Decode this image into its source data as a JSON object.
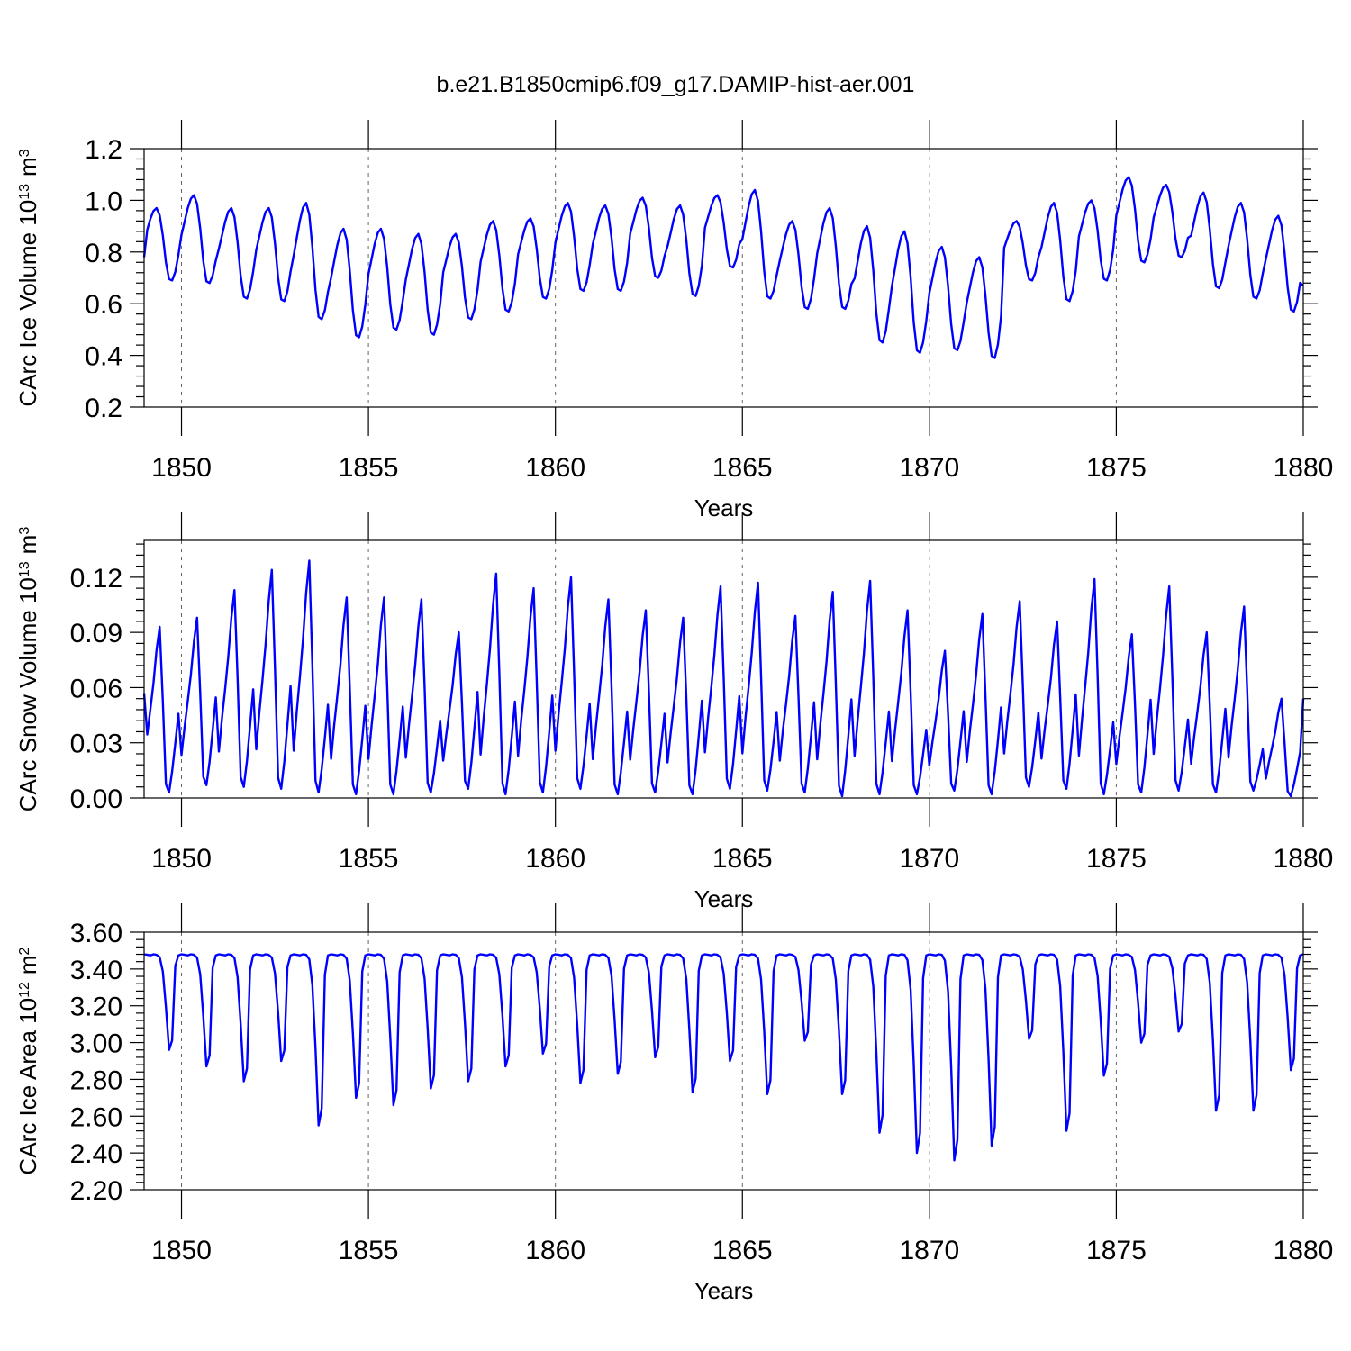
{
  "title": "b.e21.B1850cmip6.f09_g17.DAMIP-hist-aer.001",
  "chart_data": [
    {
      "type": "line",
      "ylabel": "CArc Ice Volume 10",
      "ylabel_exp": "13",
      "ylabel_unit": "m",
      "ylabel_unit_exp": "3",
      "xlabel": "Years",
      "xlim": [
        1849.0,
        1880.0
      ],
      "xticks": [
        1850,
        1855,
        1860,
        1865,
        1870,
        1875,
        1880
      ],
      "xtick_labels": [
        "1850",
        "1855",
        "1860",
        "1865",
        "1870",
        "1875",
        "1880"
      ],
      "ylim": [
        0.2,
        1.2
      ],
      "yticks": [
        0.2,
        0.4,
        0.6,
        0.8,
        1.0,
        1.2
      ],
      "ytick_labels": [
        "0.2",
        "0.4",
        "0.6",
        "0.8",
        "1.0",
        "1.2"
      ],
      "y_minor": 0.04,
      "grid": "dashed vertical at major x ticks",
      "color": "#0000ff",
      "annual": {
        "peak_month": 4,
        "min_month": 9,
        "peaks": [
          0.97,
          1.02,
          0.97,
          0.97,
          0.99,
          0.89,
          0.89,
          0.87,
          0.87,
          0.92,
          0.93,
          0.99,
          0.98,
          1.01,
          0.98,
          1.02,
          1.04,
          0.92,
          0.97,
          0.9,
          0.88,
          0.82,
          0.78,
          0.92,
          0.99,
          1.0,
          1.09,
          1.06,
          1.03,
          0.99,
          0.94
        ],
        "troughs": [
          0.69,
          0.68,
          0.62,
          0.61,
          0.54,
          0.47,
          0.5,
          0.48,
          0.54,
          0.57,
          0.62,
          0.65,
          0.65,
          0.7,
          0.63,
          0.74,
          0.62,
          0.58,
          0.58,
          0.45,
          0.41,
          0.42,
          0.39,
          0.69,
          0.61,
          0.69,
          0.76,
          0.78,
          0.66,
          0.62,
          0.57
        ],
        "start_value": 0.78,
        "end_value": 0.67
      }
    },
    {
      "type": "line",
      "ylabel": "CArc Snow Volume 10",
      "ylabel_exp": "13",
      "ylabel_unit": "m",
      "ylabel_unit_exp": "3",
      "xlabel": "Years",
      "xlim": [
        1849.0,
        1880.0
      ],
      "xticks": [
        1850,
        1855,
        1860,
        1865,
        1870,
        1875,
        1880
      ],
      "xtick_labels": [
        "1850",
        "1855",
        "1860",
        "1865",
        "1870",
        "1875",
        "1880"
      ],
      "ylim": [
        0.0,
        0.14
      ],
      "yticks": [
        0.0,
        0.03,
        0.06,
        0.09,
        0.12
      ],
      "ytick_labels": [
        "0.00",
        "0.03",
        "0.06",
        "0.09",
        "0.12"
      ],
      "y_minor": 0.006,
      "grid": "dashed vertical at major x ticks",
      "color": "#0000ff",
      "annual": {
        "peak_month": 5,
        "min_month": 7,
        "peaks": [
          0.093,
          0.098,
          0.113,
          0.124,
          0.129,
          0.109,
          0.109,
          0.108,
          0.09,
          0.122,
          0.114,
          0.12,
          0.108,
          0.102,
          0.098,
          0.115,
          0.117,
          0.099,
          0.112,
          0.118,
          0.102,
          0.08,
          0.1,
          0.107,
          0.096,
          0.119,
          0.089,
          0.115,
          0.09,
          0.104,
          0.054
        ],
        "troughs": [
          0.003,
          0.007,
          0.006,
          0.005,
          0.003,
          0.002,
          0.002,
          0.003,
          0.005,
          0.002,
          0.003,
          0.005,
          0.002,
          0.003,
          0.002,
          0.005,
          0.004,
          0.003,
          0.001,
          0.002,
          0.002,
          0.004,
          0.002,
          0.006,
          0.005,
          0.002,
          0.003,
          0.004,
          0.003,
          0.004,
          0.001
        ],
        "start_value": 0.057,
        "end_value": 0.054
      }
    },
    {
      "type": "line",
      "ylabel": "CArc Ice Area 10",
      "ylabel_exp": "12",
      "ylabel_unit": "m",
      "ylabel_unit_exp": "2",
      "xlabel": "Years",
      "xlim": [
        1849.0,
        1880.0
      ],
      "xticks": [
        1850,
        1855,
        1860,
        1865,
        1870,
        1875,
        1880
      ],
      "xtick_labels": [
        "1850",
        "1855",
        "1860",
        "1865",
        "1870",
        "1875",
        "1880"
      ],
      "ylim": [
        2.2,
        3.6
      ],
      "yticks": [
        2.2,
        2.4,
        2.6,
        2.8,
        3.0,
        3.2,
        3.4,
        3.6
      ],
      "ytick_labels": [
        "2.20",
        "2.40",
        "2.60",
        "2.80",
        "3.00",
        "3.20",
        "3.40",
        "3.60"
      ],
      "y_minor": 0.04,
      "grid": "dashed vertical at major x ticks",
      "color": "#0000ff",
      "annual": {
        "max_value": 3.48,
        "min_month": 8,
        "troughs": [
          2.96,
          2.87,
          2.79,
          2.9,
          2.55,
          2.7,
          2.66,
          2.75,
          2.79,
          2.87,
          2.94,
          2.78,
          2.83,
          2.92,
          2.73,
          2.9,
          2.72,
          3.01,
          2.72,
          2.51,
          2.4,
          2.36,
          2.44,
          3.02,
          2.52,
          2.82,
          3.0,
          3.06,
          2.63,
          2.63,
          2.85
        ],
        "start_value": 3.48,
        "end_value": 3.48
      }
    }
  ]
}
